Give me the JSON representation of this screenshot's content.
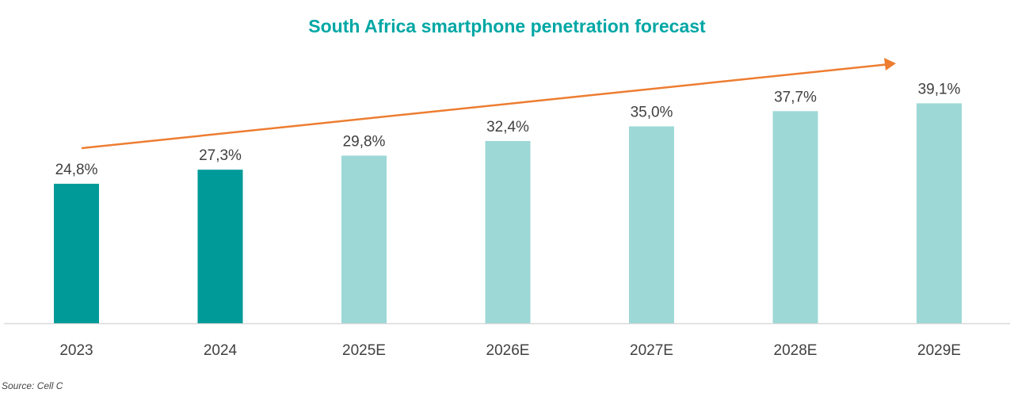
{
  "chart_data": {
    "type": "bar",
    "title": "South Africa smartphone penetration forecast",
    "categories": [
      "2023",
      "2024",
      "2025E",
      "2026E",
      "2027E",
      "2028E",
      "2029E"
    ],
    "values": [
      24.8,
      27.3,
      29.8,
      32.4,
      35.0,
      37.7,
      39.1
    ],
    "data_labels": [
      "24,8%",
      "27,3%",
      "29,8%",
      "32,4%",
      "35,0%",
      "37,7%",
      "39,1%"
    ],
    "xlabel": "",
    "ylabel": "",
    "ylim": [
      0,
      45
    ],
    "grid": false,
    "colors": {
      "actual": "#009a98",
      "forecast": "#9dd8d6",
      "trend_arrow": "#ed7d31",
      "title": "#00a7a5"
    },
    "actual_categories": [
      "2023",
      "2024"
    ],
    "annotations": [
      "upward trend arrow"
    ]
  },
  "source": "Source: Cell C"
}
